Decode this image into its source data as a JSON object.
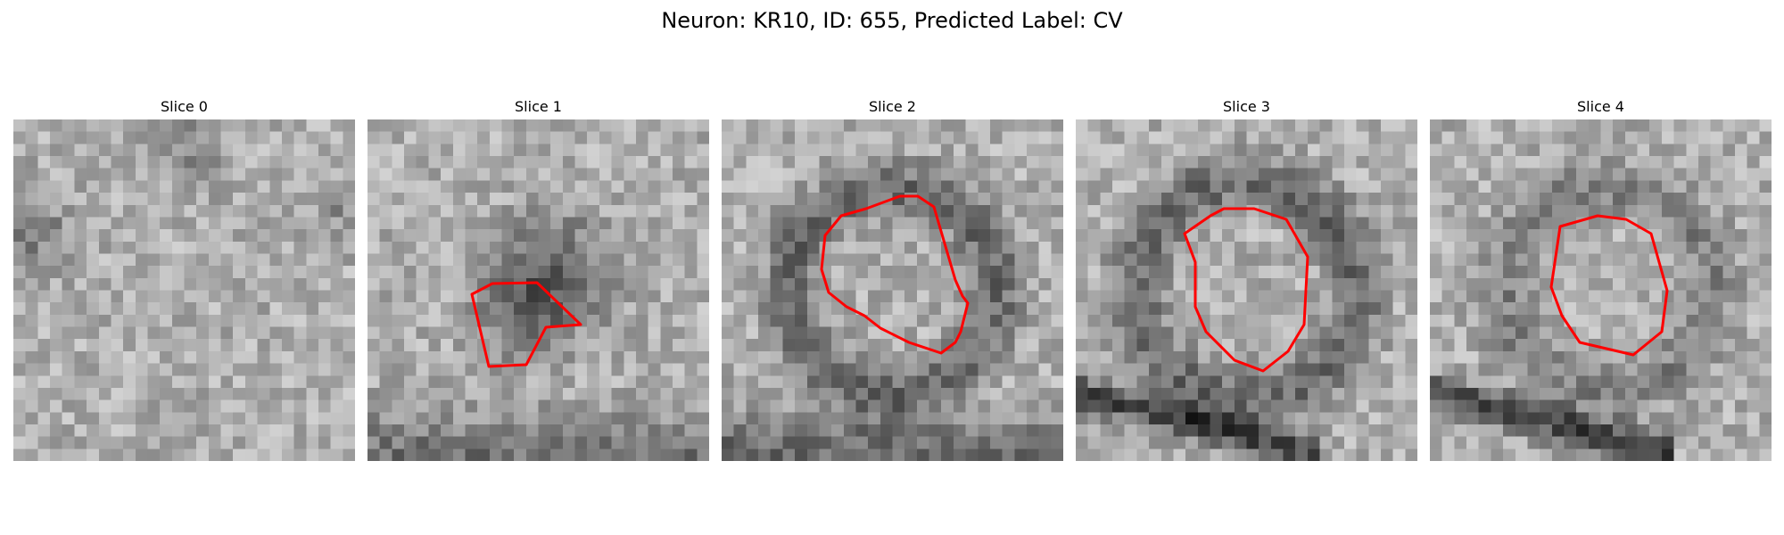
{
  "figure": {
    "title": "Neuron: KR10, ID: 655, Predicted Label: CV"
  },
  "panels": [
    {
      "title": "Slice 0"
    },
    {
      "title": "Slice 1"
    },
    {
      "title": "Slice 2"
    },
    {
      "title": "Slice 3"
    },
    {
      "title": "Slice 4"
    }
  ],
  "colors": {
    "contour": "#ff0000",
    "background": "#ffffff"
  }
}
